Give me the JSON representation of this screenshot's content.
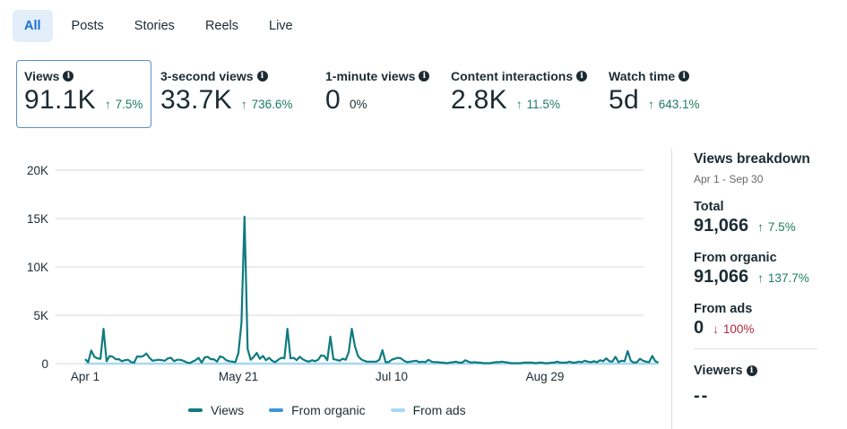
{
  "tabs": [
    {
      "label": "All",
      "active": true
    },
    {
      "label": "Posts",
      "active": false
    },
    {
      "label": "Stories",
      "active": false
    },
    {
      "label": "Reels",
      "active": false
    },
    {
      "label": "Live",
      "active": false
    }
  ],
  "metrics": [
    {
      "label": "Views",
      "value": "91.1K",
      "delta": "7.5%",
      "direction": "up",
      "selected": true
    },
    {
      "label": "3-second views",
      "value": "33.7K",
      "delta": "736.6%",
      "direction": "up",
      "selected": false
    },
    {
      "label": "1-minute views",
      "value": "0",
      "delta": "0%",
      "direction": "none",
      "selected": false
    },
    {
      "label": "Content interactions",
      "value": "2.8K",
      "delta": "11.5%",
      "direction": "up",
      "selected": false
    },
    {
      "label": "Watch time",
      "value": "5d",
      "delta": "643.1%",
      "direction": "up",
      "selected": false
    }
  ],
  "icons": {
    "info": "info-icon",
    "up": "↑",
    "down": "↓"
  },
  "colors": {
    "views": "#0f7b80",
    "organic": "#3d97d8",
    "ads": "#a6d8f2",
    "positive": "#1d7c62",
    "negative": "#b3263d",
    "accent": "#1a6ed8"
  },
  "breakdown": {
    "title": "Views breakdown",
    "date_range": "Apr 1 - Sep 30",
    "total": {
      "label": "Total",
      "value": "91,066",
      "delta": "7.5%",
      "direction": "up"
    },
    "organic": {
      "label": "From organic",
      "value": "91,066",
      "delta": "137.7%",
      "direction": "up"
    },
    "ads": {
      "label": "From ads",
      "value": "0",
      "delta": "100%",
      "direction": "down"
    },
    "viewers": {
      "label": "Viewers",
      "value": "--"
    }
  },
  "chart_data": {
    "type": "line",
    "title": "",
    "xlabel": "",
    "ylabel": "",
    "ylim": [
      0,
      20000
    ],
    "yticks": [
      0,
      5000,
      10000,
      15000,
      20000
    ],
    "ytick_labels": [
      "0",
      "5K",
      "10K",
      "15K",
      "20K"
    ],
    "xtick_labels": [
      "Apr 1",
      "May 21",
      "Jul 10",
      "Aug 29"
    ],
    "xtick_days": [
      0,
      50,
      100,
      150
    ],
    "grid": true,
    "legend": "bottom-center",
    "x_start": "Apr 1",
    "x_end": "Sep 30",
    "series": [
      {
        "name": "Views",
        "color": "#0f7b80",
        "values": [
          450,
          150,
          1350,
          700,
          550,
          500,
          3600,
          250,
          800,
          700,
          450,
          450,
          250,
          350,
          400,
          150,
          100,
          750,
          700,
          800,
          1050,
          600,
          300,
          350,
          400,
          350,
          300,
          550,
          600,
          250,
          400,
          400,
          300,
          150,
          50,
          200,
          350,
          600,
          100,
          650,
          700,
          450,
          450,
          200,
          750,
          650,
          350,
          250,
          200,
          150,
          1100,
          4200,
          15200,
          1500,
          400,
          700,
          1100,
          500,
          800,
          350,
          600,
          300,
          150,
          400,
          600,
          550,
          3600,
          550,
          600,
          350,
          700,
          450,
          300,
          200,
          350,
          250,
          400,
          850,
          800,
          350,
          2800,
          450,
          400,
          300,
          500,
          400,
          1200,
          3600,
          1800,
          800,
          450,
          300,
          200,
          200,
          200,
          200,
          400,
          1400,
          150,
          150,
          400,
          500,
          600,
          550,
          300,
          150,
          200,
          250,
          300,
          150,
          200,
          150,
          400,
          200,
          150,
          150,
          100,
          100,
          50,
          100,
          150,
          200,
          100,
          100,
          350,
          200,
          100,
          150,
          100,
          100,
          50,
          50,
          50,
          100,
          150,
          150,
          200,
          150,
          100,
          50,
          50,
          50,
          50,
          100,
          100,
          100,
          100,
          50,
          100,
          100,
          50,
          50,
          100,
          100,
          200,
          100,
          100,
          100,
          200,
          100,
          100,
          200,
          150,
          300,
          200,
          150,
          250,
          150,
          350,
          250,
          550,
          250,
          200,
          700,
          150,
          300,
          250,
          1300,
          300,
          100,
          150,
          500,
          300,
          200,
          150,
          800,
          250,
          100
        ]
      },
      {
        "name": "From organic",
        "color": "#3d97d8",
        "values": []
      },
      {
        "name": "From ads",
        "color": "#a6d8f2",
        "values": "zero for all days"
      }
    ]
  }
}
